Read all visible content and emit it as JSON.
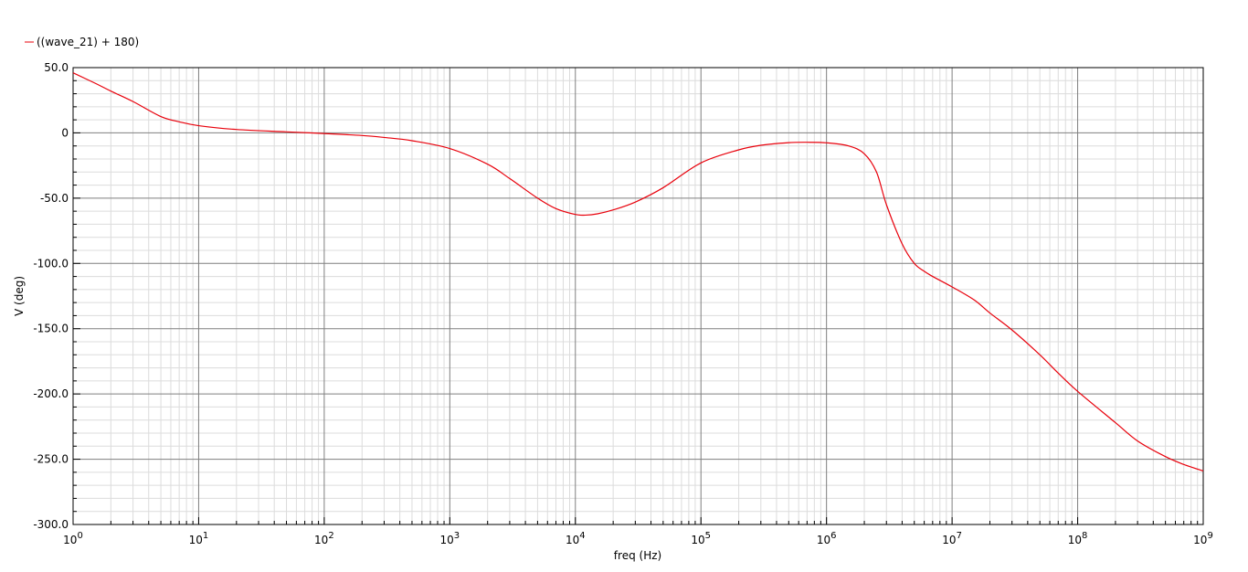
{
  "chart_data": {
    "type": "line",
    "title": "",
    "xlabel": "freq (Hz)",
    "ylabel": "V (deg)",
    "xscale": "log",
    "xlim": [
      1,
      1000000000
    ],
    "ylim": [
      -300,
      50
    ],
    "grid": true,
    "legend": "top-left",
    "x_ticks": [
      {
        "base": "10",
        "exp": "0"
      },
      {
        "base": "10",
        "exp": "1"
      },
      {
        "base": "10",
        "exp": "2"
      },
      {
        "base": "10",
        "exp": "3"
      },
      {
        "base": "10",
        "exp": "4"
      },
      {
        "base": "10",
        "exp": "5"
      },
      {
        "base": "10",
        "exp": "6"
      },
      {
        "base": "10",
        "exp": "7"
      },
      {
        "base": "10",
        "exp": "8"
      },
      {
        "base": "10",
        "exp": "9"
      }
    ],
    "y_ticks": [
      {
        "value": 50,
        "label": "50.0"
      },
      {
        "value": 0,
        "label": "0"
      },
      {
        "value": -50,
        "label": "-50.0"
      },
      {
        "value": -100,
        "label": "-100.0"
      },
      {
        "value": -150,
        "label": "-150.0"
      },
      {
        "value": -200,
        "label": "-200.0"
      },
      {
        "value": -250,
        "label": "-250.0"
      },
      {
        "value": -300,
        "label": "-300.0"
      }
    ],
    "series": [
      {
        "name": "((wave_21) + 180)",
        "color": "#e8000b",
        "points": [
          [
            1,
            46
          ],
          [
            1.5,
            38
          ],
          [
            2,
            32
          ],
          [
            3,
            24
          ],
          [
            5,
            12.5
          ],
          [
            7,
            8.5
          ],
          [
            10,
            5.5
          ],
          [
            20,
            2.6
          ],
          [
            50,
            0.8
          ],
          [
            100,
            -0.5
          ],
          [
            200,
            -2
          ],
          [
            300,
            -3.5
          ],
          [
            500,
            -6
          ],
          [
            1000,
            -12
          ],
          [
            2000,
            -24
          ],
          [
            3000,
            -35
          ],
          [
            5000,
            -50
          ],
          [
            7000,
            -58
          ],
          [
            10000,
            -62.5
          ],
          [
            12000,
            -63
          ],
          [
            15000,
            -62
          ],
          [
            20000,
            -59
          ],
          [
            30000,
            -53
          ],
          [
            50000,
            -42
          ],
          [
            100000,
            -23
          ],
          [
            200000,
            -13
          ],
          [
            300000,
            -9.5
          ],
          [
            500000,
            -7.5
          ],
          [
            700000,
            -7.2
          ],
          [
            1000000,
            -7.6
          ],
          [
            1500000,
            -10
          ],
          [
            2000000,
            -16
          ],
          [
            2500000,
            -30
          ],
          [
            3000000,
            -55
          ],
          [
            4000000,
            -85
          ],
          [
            5000000,
            -100
          ],
          [
            6000000,
            -106
          ],
          [
            7000000,
            -110
          ],
          [
            10000000,
            -118
          ],
          [
            15000000,
            -128
          ],
          [
            20000000,
            -138
          ],
          [
            30000000,
            -151
          ],
          [
            50000000,
            -170
          ],
          [
            70000000,
            -184
          ],
          [
            100000000,
            -198
          ],
          [
            200000000,
            -222
          ],
          [
            300000000,
            -236
          ],
          [
            500000000,
            -248
          ],
          [
            700000000,
            -254
          ],
          [
            1000000000,
            -259
          ]
        ]
      }
    ]
  }
}
